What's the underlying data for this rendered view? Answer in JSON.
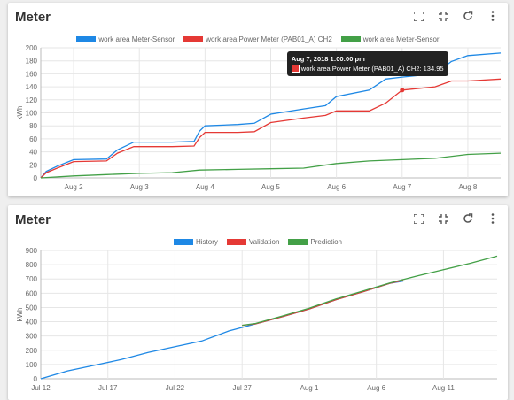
{
  "cards": [
    {
      "title": "Meter",
      "chart_data": {
        "type": "line",
        "ylabel": "kWh",
        "ylim": [
          0,
          200
        ],
        "yticks": [
          0,
          20,
          40,
          60,
          80,
          100,
          120,
          140,
          160,
          180,
          200
        ],
        "xlim": [
          "Aug 1 12:00",
          "Aug 8 12:00"
        ],
        "xtick_labels": [
          "Aug 2",
          "Aug 3",
          "Aug 4",
          "Aug 5",
          "Aug 6",
          "Aug 7",
          "Aug 8"
        ],
        "series": [
          {
            "name": "work area Meter-Sensor",
            "color": "#1e88e5",
            "x": [
              "Aug 1 12:00",
              "Aug 1 14:00",
              "Aug 1 18:00",
              "Aug 2 00:00",
              "Aug 2 12:00",
              "Aug 2 16:00",
              "Aug 2 22:00",
              "Aug 3 00:00",
              "Aug 3 12:00",
              "Aug 3 20:00",
              "Aug 3 22:00",
              "Aug 4 00:00",
              "Aug 4 12:00",
              "Aug 4 18:00",
              "Aug 5 00:00",
              "Aug 5 12:00",
              "Aug 5 20:00",
              "Aug 6 00:00",
              "Aug 6 12:00",
              "Aug 6 18:00",
              "Aug 7 00:00",
              "Aug 7 12:00",
              "Aug 7 18:00",
              "Aug 8 00:00",
              "Aug 8 12:00"
            ],
            "y": [
              0,
              10,
              18,
              28,
              29,
              43,
              55,
              55,
              55,
              56,
              72,
              80,
              82,
              84,
              98,
              106,
              111,
              125,
              135,
              152,
              155,
              160,
              179,
              188,
              192
            ]
          },
          {
            "name": "work area Power Meter (PAB01_A) CH2",
            "color": "#e53935",
            "x": [
              "Aug 1 12:00",
              "Aug 1 14:00",
              "Aug 1 18:00",
              "Aug 2 00:00",
              "Aug 2 12:00",
              "Aug 2 16:00",
              "Aug 2 22:00",
              "Aug 3 00:00",
              "Aug 3 12:00",
              "Aug 3 20:00",
              "Aug 3 22:00",
              "Aug 4 00:00",
              "Aug 4 12:00",
              "Aug 4 18:00",
              "Aug 5 00:00",
              "Aug 5 12:00",
              "Aug 5 20:00",
              "Aug 6 00:00",
              "Aug 6 12:00",
              "Aug 6 18:00",
              "Aug 7 00:00",
              "Aug 7 12:00",
              "Aug 7 18:00",
              "Aug 8 00:00",
              "Aug 8 12:00"
            ],
            "y": [
              0,
              8,
              15,
              25,
              26,
              38,
              48,
              48,
              48,
              49,
              62,
              70,
              70,
              71,
              85,
              92,
              96,
              103,
              103,
              115,
              134.95,
              140,
              149,
              149,
              152
            ]
          },
          {
            "name": "work area Meter-Sensor",
            "color": "#43a047",
            "x": [
              "Aug 1 12:00",
              "Aug 2 00:00",
              "Aug 2 12:00",
              "Aug 3 00:00",
              "Aug 3 12:00",
              "Aug 3 22:00",
              "Aug 4 12:00",
              "Aug 5 00:00",
              "Aug 5 12:00",
              "Aug 6 00:00",
              "Aug 6 12:00",
              "Aug 7 00:00",
              "Aug 7 12:00",
              "Aug 8 00:00",
              "Aug 8 12:00"
            ],
            "y": [
              0,
              3,
              5,
              7,
              8,
              12,
              13,
              14,
              15,
              22,
              26,
              28,
              30,
              36,
              38
            ]
          }
        ],
        "legend": "top-center",
        "grid": true,
        "tooltip": {
          "title": "Aug 7, 2018 1:00:00 pm",
          "text": "work area Power Meter (PAB01_A) CH2: 134.95",
          "x": "Aug 7 00:00",
          "y": 134.95
        }
      }
    },
    {
      "title": "Meter",
      "chart_data": {
        "type": "line",
        "ylabel": "kWh",
        "ylim": [
          0,
          900
        ],
        "yticks": [
          0,
          100,
          200,
          300,
          400,
          500,
          600,
          700,
          800,
          900
        ],
        "xlim": [
          "Jul 12",
          "Aug 15"
        ],
        "xtick_labels": [
          "Jul 12",
          "Jul 17",
          "Jul 22",
          "Jul 27",
          "Aug 1",
          "Aug 6",
          "Aug 11"
        ],
        "series": [
          {
            "name": "History",
            "color": "#1e88e5",
            "x": [
              "Jul 12",
              "Jul 14",
              "Jul 16",
              "Jul 18",
              "Jul 20",
              "Jul 22",
              "Jul 24",
              "Jul 26",
              "Jul 28",
              "Jul 30",
              "Aug 1",
              "Aug 3",
              "Aug 5",
              "Aug 7",
              "Aug 8"
            ],
            "y": [
              0,
              55,
              95,
              135,
              185,
              225,
              265,
              335,
              385,
              435,
              490,
              555,
              610,
              670,
              685
            ]
          },
          {
            "name": "Validation",
            "color": "#e53935",
            "x": [
              "Jul 27",
              "Jul 28",
              "Jul 30",
              "Aug 1",
              "Aug 3",
              "Aug 5",
              "Aug 7",
              "Aug 8"
            ],
            "y": [
              375,
              385,
              435,
              490,
              555,
              610,
              670,
              690
            ]
          },
          {
            "name": "Prediction",
            "color": "#43a047",
            "x": [
              "Jul 27",
              "Jul 28",
              "Jul 30",
              "Aug 1",
              "Aug 3",
              "Aug 5",
              "Aug 7",
              "Aug 9",
              "Aug 11",
              "Aug 13",
              "Aug 15"
            ],
            "y": [
              375,
              388,
              440,
              495,
              560,
              615,
              672,
              720,
              765,
              810,
              860
            ]
          }
        ],
        "legend": "top-center",
        "grid": true
      }
    }
  ]
}
